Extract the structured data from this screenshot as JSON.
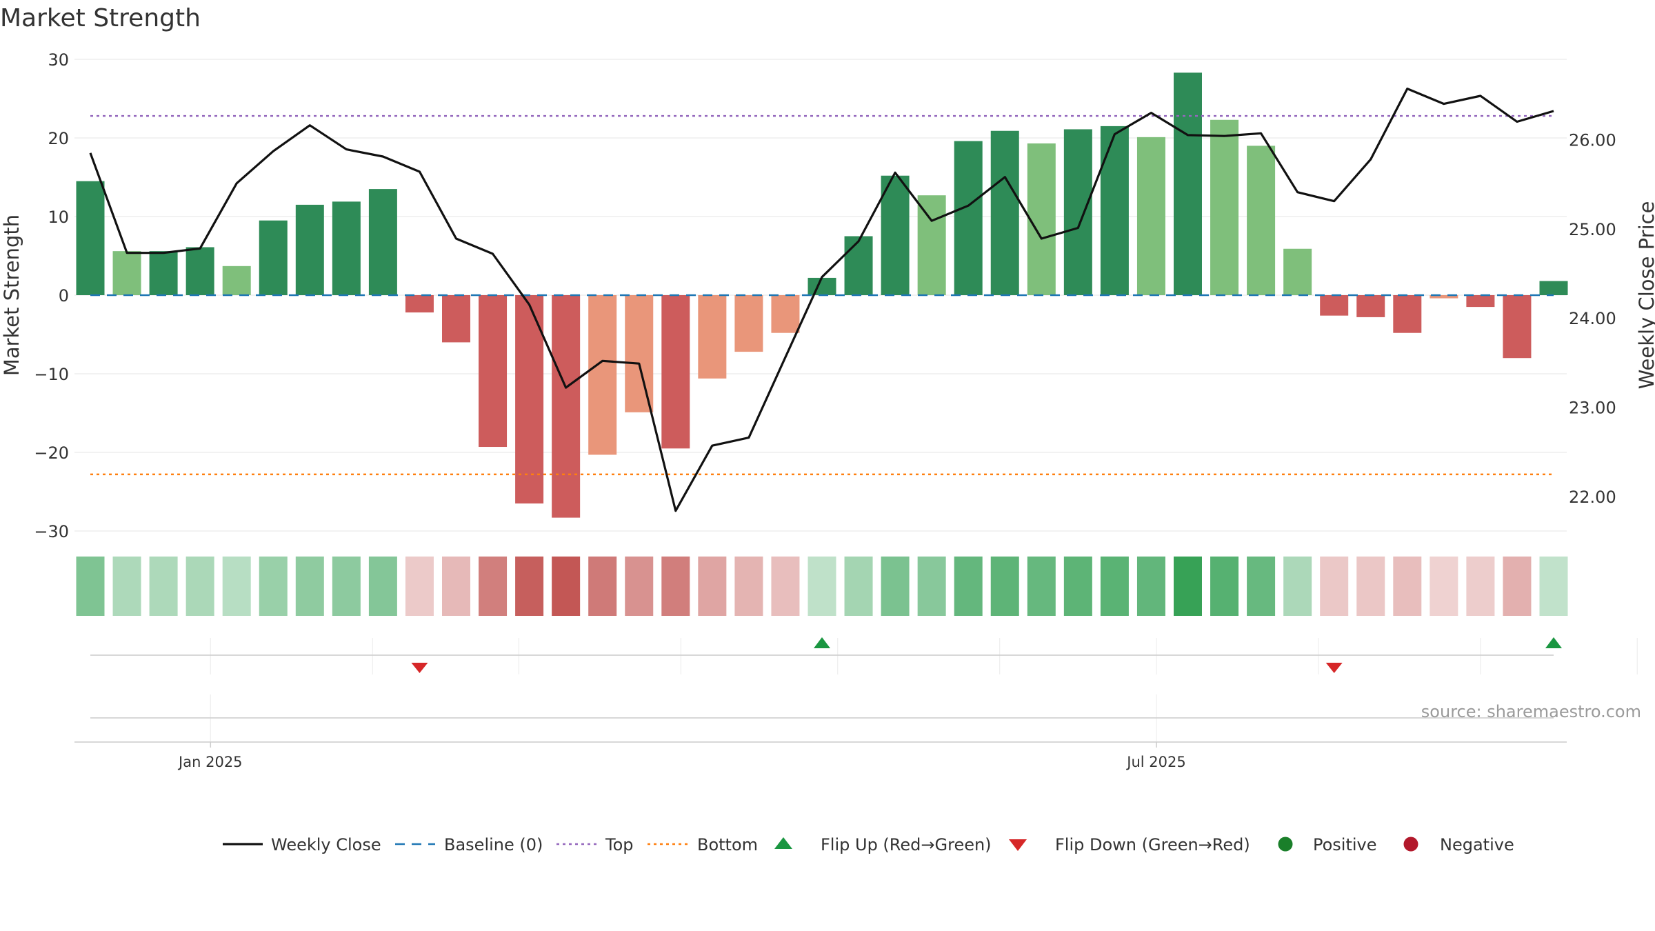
{
  "chart_data": {
    "type": "bar",
    "title": "Market Strength",
    "ylabel": "Market Strength",
    "y2label": "Weekly Close Price",
    "ylim": [
      -30,
      30
    ],
    "y2lim": [
      21.6,
      26.7
    ],
    "yticks": [
      "30",
      "20",
      "10",
      "0",
      "−10",
      "−20",
      "−30"
    ],
    "y2ticks": [
      "26.00",
      "25.00",
      "24.00",
      "23.00",
      "22.00"
    ],
    "x_start": "2024-12-09",
    "x_step_days": 7,
    "x_ticks": [
      "Jan 2025",
      "Jul 2025"
    ],
    "strength": [
      14.5,
      5.6,
      5.6,
      6.1,
      3.7,
      9.5,
      11.5,
      11.9,
      13.5,
      -2.2,
      -6.0,
      -19.3,
      -26.5,
      -28.3,
      -20.3,
      -14.9,
      -19.5,
      -10.6,
      -7.2,
      -4.8,
      2.2,
      7.5,
      15.2,
      12.7,
      19.6,
      20.9,
      19.3,
      21.1,
      21.5,
      20.1,
      28.3,
      22.3,
      19.0,
      5.9,
      -2.6,
      -2.8,
      -4.8,
      -0.4,
      -1.5,
      -8.0,
      1.8
    ],
    "weekly_close": [
      25.85,
      24.73,
      24.73,
      24.78,
      25.51,
      25.87,
      26.16,
      25.89,
      25.81,
      25.64,
      24.89,
      24.72,
      24.15,
      23.22,
      23.52,
      23.49,
      21.84,
      22.57,
      22.66,
      23.56,
      24.46,
      24.86,
      25.63,
      25.09,
      25.26,
      25.58,
      24.89,
      25.01,
      26.06,
      26.3,
      26.05,
      26.04,
      26.07,
      25.41,
      25.31,
      25.78,
      26.57,
      26.4,
      26.49,
      26.2,
      26.32
    ],
    "baseline": 0,
    "top": 22.8,
    "bottom": -22.8,
    "flip_up_weeks": [
      20,
      40
    ],
    "flip_down_weeks": [
      9,
      34
    ],
    "colors": {
      "strong_positive": "#2e8b57",
      "weak_positive": "#7fbf7b",
      "strong_negative": "#cd5c5c",
      "weak_negative": "#e9967a",
      "close_line": "#111111",
      "baseline": "#1f77b4",
      "top": "#9467bd",
      "bottom": "#ff7f0e",
      "flip_up": "#1a9641",
      "flip_down": "#d62728",
      "positive_dot": "#1a7f2a",
      "negative_dot": "#b2182b"
    },
    "legend": [
      {
        "key": "close",
        "label": "Weekly Close"
      },
      {
        "key": "baseline",
        "label": "Baseline (0)"
      },
      {
        "key": "top",
        "label": "Top"
      },
      {
        "key": "bottom",
        "label": "Bottom"
      },
      {
        "key": "flip_up",
        "label": "Flip Up (Red→Green)"
      },
      {
        "key": "flip_down",
        "label": "Flip Down (Green→Red)"
      },
      {
        "key": "positive",
        "label": "Positive"
      },
      {
        "key": "negative",
        "label": "Negative"
      }
    ],
    "legend_position": "bottom",
    "grid": true
  },
  "source": "source: sharemaestro.com"
}
